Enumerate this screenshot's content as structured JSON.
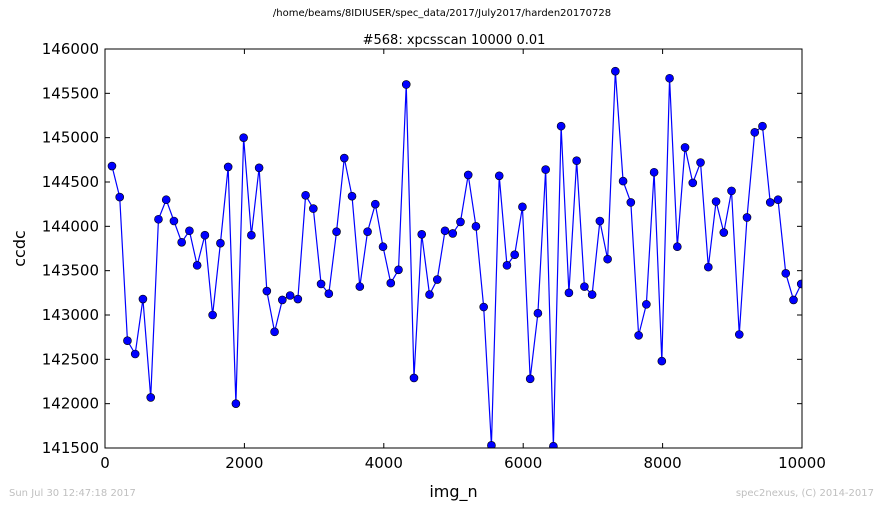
{
  "suptitle": "/home/beams/8IDIUSER/spec_data/2017/July2017/harden20170728",
  "footer": {
    "timestamp": "Sun Jul 30 12:47:18 2017",
    "credit": "spec2nexus, (C) 2014-2017"
  },
  "chart_data": {
    "type": "line",
    "title": "#568: xpcsscan 10000 0.01",
    "xlabel": "img_n",
    "ylabel": "ccdc",
    "xlim": [
      0,
      10000
    ],
    "ylim": [
      141500,
      146000
    ],
    "xticks": [
      0,
      2000,
      4000,
      6000,
      8000,
      10000
    ],
    "yticks": [
      141500,
      142000,
      142500,
      143000,
      143500,
      144000,
      144500,
      145000,
      145500,
      146000
    ],
    "grid": false,
    "markers": true,
    "series": [
      {
        "color": "#0000ff",
        "x": [
          100,
          211,
          322,
          433,
          544,
          656,
          767,
          878,
          989,
          1100,
          1211,
          1322,
          1433,
          1544,
          1656,
          1767,
          1878,
          1989,
          2100,
          2211,
          2322,
          2433,
          2544,
          2656,
          2767,
          2878,
          2989,
          3100,
          3211,
          3322,
          3433,
          3544,
          3656,
          3767,
          3878,
          3989,
          4100,
          4211,
          4322,
          4433,
          4544,
          4656,
          4767,
          4878,
          4989,
          5100,
          5211,
          5322,
          5433,
          5544,
          5656,
          5767,
          5878,
          5989,
          6100,
          6211,
          6322,
          6433,
          6544,
          6656,
          6767,
          6878,
          6989,
          7100,
          7211,
          7322,
          7433,
          7544,
          7656,
          7767,
          7878,
          7989,
          8100,
          8211,
          8322,
          8433,
          8544,
          8656,
          8767,
          8878,
          8989,
          9100,
          9211,
          9322,
          9433,
          9544,
          9656,
          9767,
          9878,
          9989
        ],
        "y": [
          144680,
          144330,
          142710,
          142560,
          143180,
          142070,
          144080,
          144300,
          144060,
          143820,
          143950,
          143560,
          143900,
          143000,
          143810,
          144670,
          142000,
          145000,
          143900,
          144660,
          143270,
          142810,
          143170,
          143220,
          143180,
          144350,
          144200,
          143350,
          143240,
          143940,
          144770,
          144340,
          143320,
          143940,
          144250,
          143770,
          143360,
          143510,
          145600,
          142290,
          143910,
          143230,
          143400,
          143950,
          143920,
          144050,
          144580,
          144000,
          143090,
          141530,
          144570,
          143560,
          143680,
          144220,
          142280,
          143020,
          144640,
          141520,
          145130,
          143250,
          144740,
          143320,
          143230,
          144060,
          143630,
          145750,
          144510,
          144270,
          142770,
          143120,
          144610,
          142480,
          145670,
          143770,
          144890,
          144490,
          144720,
          143540,
          144280,
          143930,
          144400,
          142780,
          144100,
          145060,
          145130,
          144270,
          144300,
          143470,
          143170,
          143350
        ]
      }
    ]
  }
}
